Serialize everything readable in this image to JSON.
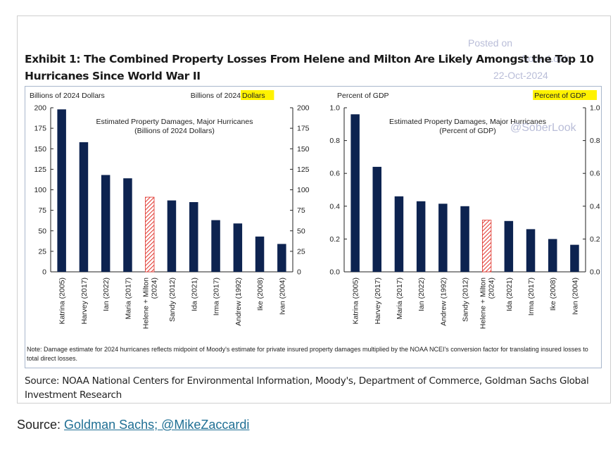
{
  "card": {
    "posted_on": "Posted on",
    "posted_by": "SoberLook",
    "posted_date": "22-Oct-2024",
    "title_line1": "Exhibit 1: The Combined Property Losses From Helene and Milton Are Likely Amongst the Top 10",
    "title_line2": "Hurricanes Since World War II",
    "watermark": "@SoberLook",
    "note": "Note: Damage estimate for 2024 hurricanes reflects midpoint of Moody's estimate for private insured property damages multiplied by the NOAA NCEI's conversion factor for translating insured losses to total direct losses.",
    "source": "Source: NOAA National Centers for Environmental Information, Moody's, Department of Commerce, Goldman Sachs Global Investment Research"
  },
  "footer": {
    "prefix": "Source: ",
    "link_text": "Goldman Sachs; @MikeZaccardi"
  },
  "colors": {
    "bar": "#0d2350",
    "hatch": "#e0332b",
    "highlight": "#fff200",
    "watermark": "#b9bdd8",
    "link": "#1f6f94"
  },
  "chart_data": [
    {
      "type": "bar",
      "title": "Estimated Property Damages, Major Hurricanes",
      "subtitle": "(Billions of 2024 Dollars)",
      "ylabel_left": "Billions of 2024 Dollars",
      "ylabel_right_prefix": "Billions of 2024 ",
      "ylabel_right_highlight": "Dollars",
      "categories": [
        "Katrina (2005)",
        "Harvey (2017)",
        "Ian (2022)",
        "Maria (2017)",
        "Helene + Milton (2024)",
        "Sandy (2012)",
        "Ida (2021)",
        "Irma (2017)",
        "Andrew (1992)",
        "Ike (2008)",
        "Ivan (2004)"
      ],
      "values": [
        198,
        158,
        118,
        114,
        91,
        87,
        85,
        63,
        59,
        43,
        34
      ],
      "estimated_index": 4,
      "ylim": [
        0,
        200
      ],
      "yticks": [
        0,
        25,
        50,
        75,
        100,
        125,
        150,
        175,
        200
      ],
      "grid": false
    },
    {
      "type": "bar",
      "title": "Estimated Property Damages, Major Hurricanes",
      "subtitle": "(Percent of GDP)",
      "ylabel_left": "Percent of GDP",
      "ylabel_right_prefix": "",
      "ylabel_right_highlight": "Percent of GDP",
      "categories": [
        "Katrina (2005)",
        "Harvey (2017)",
        "Maria (2017)",
        "Ian (2022)",
        "Andrew (1992)",
        "Sandy (2012)",
        "Helene + Milton (2024)",
        "Ida (2021)",
        "Irma (2017)",
        "Ike (2008)",
        "Ivan (2004)"
      ],
      "values": [
        0.96,
        0.64,
        0.46,
        0.43,
        0.415,
        0.4,
        0.315,
        0.31,
        0.26,
        0.2,
        0.165
      ],
      "estimated_index": 6,
      "ylim": [
        0,
        1.0
      ],
      "yticks": [
        0.0,
        0.2,
        0.4,
        0.6,
        0.8,
        1.0
      ],
      "grid": false
    }
  ]
}
